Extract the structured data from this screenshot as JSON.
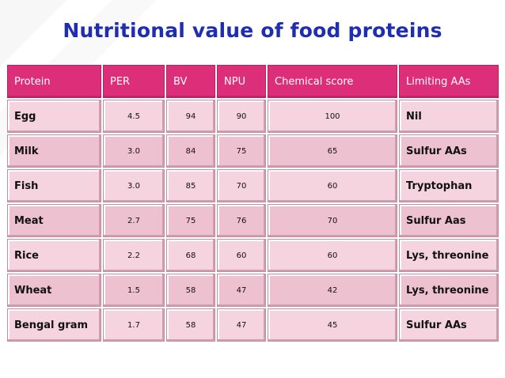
{
  "title": "Nutritional value of food proteins",
  "table": {
    "headers": [
      "Protein",
      "PER",
      "BV",
      "NPU",
      "Chemical score",
      "Limiting AAs"
    ],
    "rows": [
      {
        "protein": "Egg",
        "per": "4.5",
        "bv": "94",
        "npu": "90",
        "chem": "100",
        "limiting": "Nil"
      },
      {
        "protein": "Milk",
        "per": "3.0",
        "bv": "84",
        "npu": "75",
        "chem": "65",
        "limiting": "Sulfur AAs"
      },
      {
        "protein": "Fish",
        "per": "3.0",
        "bv": "85",
        "npu": "70",
        "chem": "60",
        "limiting": "Tryptophan"
      },
      {
        "protein": "Meat",
        "per": "2.7",
        "bv": "75",
        "npu": "76",
        "chem": "70",
        "limiting": "Sulfur Aas"
      },
      {
        "protein": "Rice",
        "per": "2.2",
        "bv": "68",
        "npu": "60",
        "chem": "60",
        "limiting": "Lys, threonine"
      },
      {
        "protein": "Wheat",
        "per": "1.5",
        "bv": "58",
        "npu": "47",
        "chem": "42",
        "limiting": "Lys, threonine"
      },
      {
        "protein": "Bengal gram",
        "per": "1.7",
        "bv": "58",
        "npu": "47",
        "chem": "45",
        "limiting": "Sulfur AAs"
      }
    ]
  },
  "colors": {
    "title": "#1f2db0",
    "header_bg": "#dd2e7a",
    "cell_bg": "#f3c7d6"
  }
}
